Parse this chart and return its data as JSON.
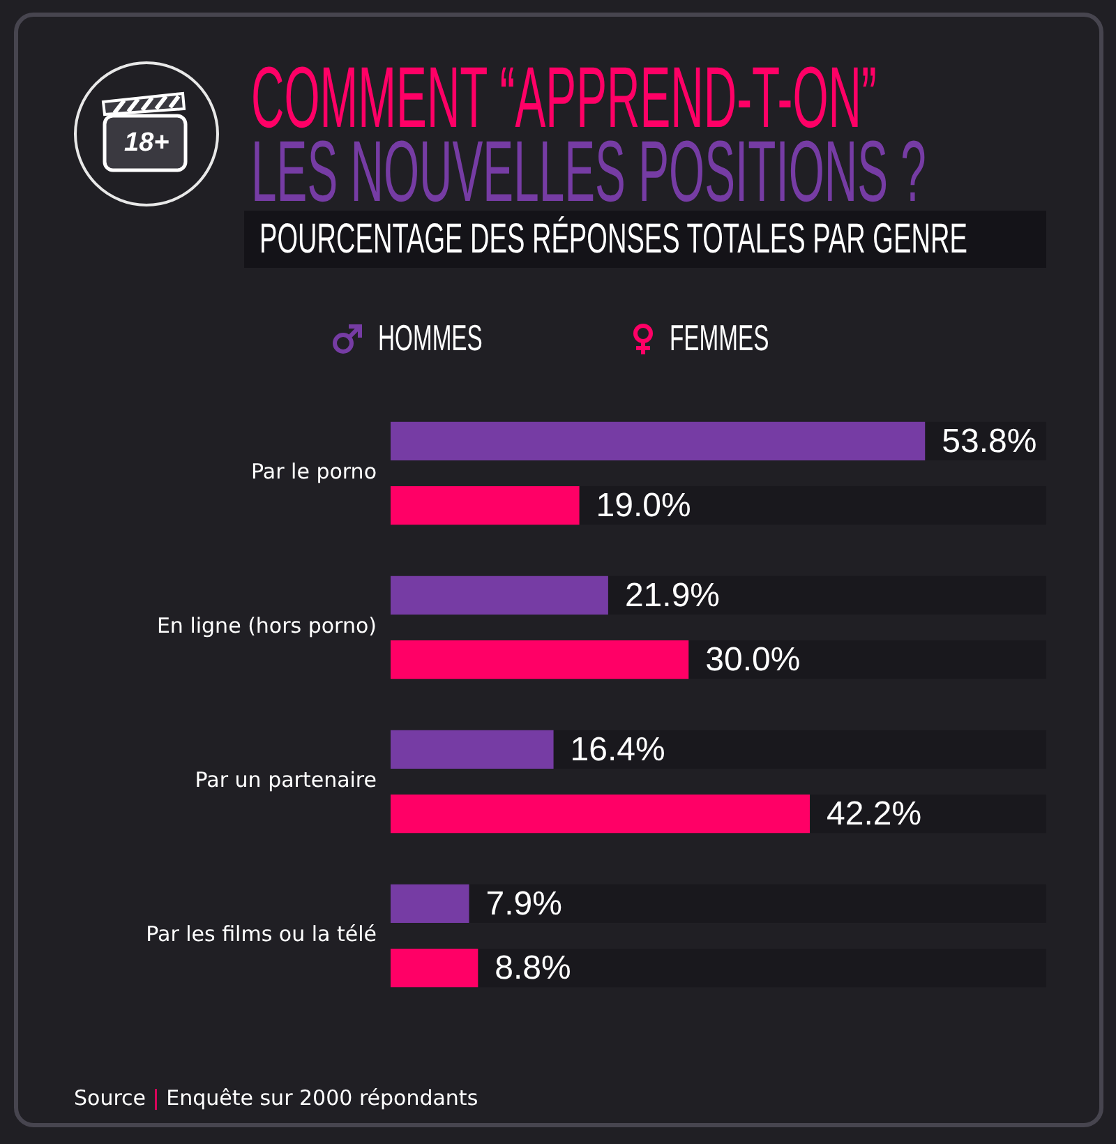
{
  "chart_data": {
    "type": "bar",
    "orientation": "horizontal",
    "title": "COMMENT “APPREND-T-ON”\nLES NOUVELLES POSITIONS ?",
    "subtitle": "POURCENTAGE DES RÉPONSES TOTALES PAR GENRE",
    "categories": [
      "Par le porno",
      "En ligne (hors porno)",
      "Par un partenaire",
      "Par les films ou la télé"
    ],
    "series": [
      {
        "name": "HOMMES",
        "color": "#763ca4",
        "values": [
          53.8,
          21.9,
          16.4,
          7.9
        ],
        "value_labels": [
          "53.8%",
          "21.9%",
          "16.4%",
          "7.9%"
        ]
      },
      {
        "name": "FEMMES",
        "color": "#ff0066",
        "values": [
          19.0,
          30.0,
          42.2,
          8.8
        ],
        "value_labels": [
          "19.0%",
          "30.0%",
          "42.2%",
          "8.8%"
        ]
      }
    ],
    "xlim": [
      0,
      66
    ],
    "tick_labels": "y",
    "legend": "top",
    "annotations": [
      "18+",
      "Source | Enquête sur 2000 répondants"
    ]
  }
}
